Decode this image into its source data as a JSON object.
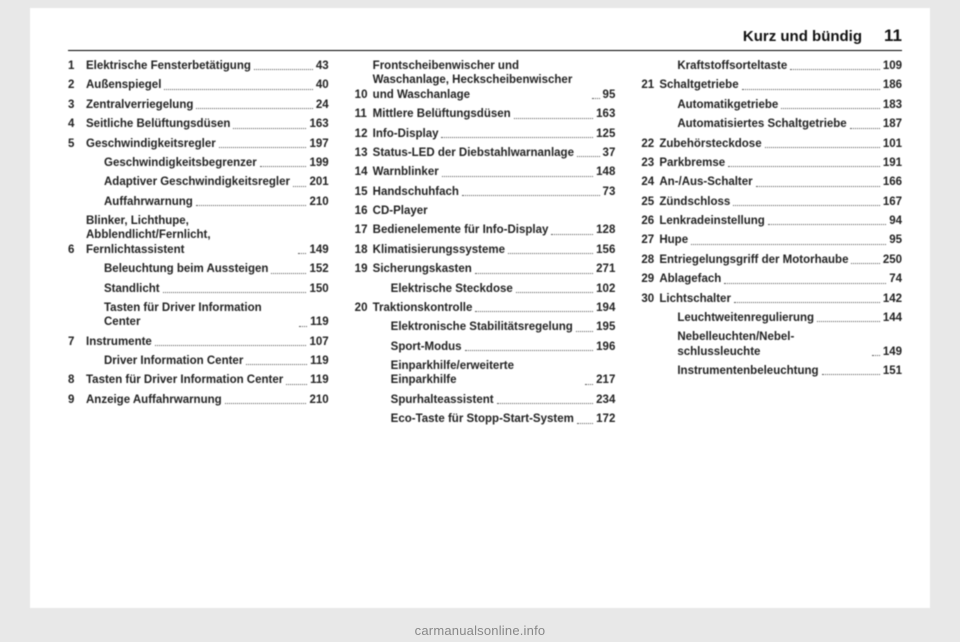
{
  "header": {
    "section": "Kurz und bündig",
    "page": "11"
  },
  "columns": [
    [
      {
        "n": "1",
        "label": "Elektrische Fensterbetätigung",
        "pg": "43"
      },
      {
        "n": "2",
        "label": "Außenspiegel",
        "pg": "40"
      },
      {
        "n": "3",
        "label": "Zentralverriegelung",
        "pg": "24"
      },
      {
        "n": "4",
        "label": "Seitliche Belüftungsdüsen",
        "pg": "163"
      },
      {
        "n": "5",
        "label": "Geschwindigkeitsregler",
        "pg": "197"
      },
      {
        "sub": true,
        "label": "Geschwindigkeitsbe­grenzer",
        "pg": "199"
      },
      {
        "sub": true,
        "label": "Adaptiver Geschwindig­keitsregler",
        "pg": "201"
      },
      {
        "sub": true,
        "label": "Auffahrwarnung",
        "pg": "210"
      },
      {
        "n": "6",
        "label": "Blinker, Lichthupe, Abblendlicht/Fernlicht, Fernlichtassistent",
        "pg": "149"
      },
      {
        "sub": true,
        "label": "Beleuchtung beim Aussteigen",
        "pg": "152"
      },
      {
        "sub": true,
        "label": "Standlicht",
        "pg": "150"
      },
      {
        "sub": true,
        "label": "Tasten für Driver Information Center",
        "pg": "119"
      },
      {
        "n": "7",
        "label": "Instrumente",
        "pg": "107"
      },
      {
        "sub": true,
        "label": "Driver Information Center",
        "pg": "119"
      },
      {
        "n": "8",
        "label": "Tasten für Driver Information Center",
        "pg": "119"
      },
      {
        "n": "9",
        "label": "Anzeige Auffahrwarnung",
        "pg": "210"
      }
    ],
    [
      {
        "n": "10",
        "label": "Frontscheibenwischer und Waschanlage, Heck­scheibenwischer und Waschanlage",
        "pg": "95"
      },
      {
        "n": "11",
        "label": "Mittlere Belüftungsdüsen",
        "pg": "163"
      },
      {
        "n": "12",
        "label": "Info-Display",
        "pg": "125"
      },
      {
        "n": "13",
        "label": "Status-LED der Diebstahl­warnanlage",
        "pg": "37"
      },
      {
        "n": "14",
        "label": "Warnblinker",
        "pg": "148"
      },
      {
        "n": "15",
        "label": "Handschuhfach",
        "pg": "73"
      },
      {
        "n": "16",
        "label": "CD-Player",
        "nopg": true
      },
      {
        "n": "17",
        "label": "Bedienelemente für Info-Display",
        "pg": "128"
      },
      {
        "n": "18",
        "label": "Klimatisierungssysteme",
        "pg": "156"
      },
      {
        "n": "19",
        "label": "Sicherungskasten",
        "pg": "271"
      },
      {
        "sub": true,
        "label": "Elektrische Steckdose",
        "pg": "102"
      },
      {
        "n": "20",
        "label": "Traktionskontrolle",
        "pg": "194"
      },
      {
        "sub": true,
        "label": "Elektronische Stabilitäts­regelung",
        "pg": "195"
      },
      {
        "sub": true,
        "label": "Sport-Modus",
        "pg": "196"
      },
      {
        "sub": true,
        "label": "Einparkhilfe/erweiterte Einparkhilfe",
        "pg": "217"
      },
      {
        "sub": true,
        "label": "Spurhalteassistent",
        "pg": "234"
      },
      {
        "sub": true,
        "label": "Eco-Taste für Stopp-Start-System",
        "pg": "172"
      }
    ],
    [
      {
        "sub": true,
        "label": "Kraftstoffsorteltaste",
        "pg": "109"
      },
      {
        "n": "21",
        "label": "Schaltgetriebe",
        "pg": "186"
      },
      {
        "sub": true,
        "label": "Automatikgetriebe",
        "pg": "183"
      },
      {
        "sub": true,
        "label": "Automatisiertes Schaltgetriebe",
        "pg": "187"
      },
      {
        "n": "22",
        "label": "Zubehörsteckdose",
        "pg": "101"
      },
      {
        "n": "23",
        "label": "Parkbremse",
        "pg": "191"
      },
      {
        "n": "24",
        "label": "An-/Aus-Schalter",
        "pg": "166"
      },
      {
        "n": "25",
        "label": "Zündschloss",
        "pg": "167"
      },
      {
        "n": "26",
        "label": "Lenkradeinstellung",
        "pg": "94"
      },
      {
        "n": "27",
        "label": "Hupe",
        "pg": "95"
      },
      {
        "n": "28",
        "label": "Entriegelungsgriff der Motorhaube",
        "pg": "250"
      },
      {
        "n": "29",
        "label": "Ablagefach",
        "pg": "74"
      },
      {
        "n": "30",
        "label": "Lichtschalter",
        "pg": "142"
      },
      {
        "sub": true,
        "label": "Leuchtweitenregulierung",
        "pg": "144"
      },
      {
        "sub": true,
        "label": "Nebelleuchten/Nebel­schlussleuchte",
        "pg": "149"
      },
      {
        "sub": true,
        "label": "Instrumentenbeleuchtung",
        "pg": "151"
      }
    ]
  ],
  "footer": "carmanualsonline.info"
}
